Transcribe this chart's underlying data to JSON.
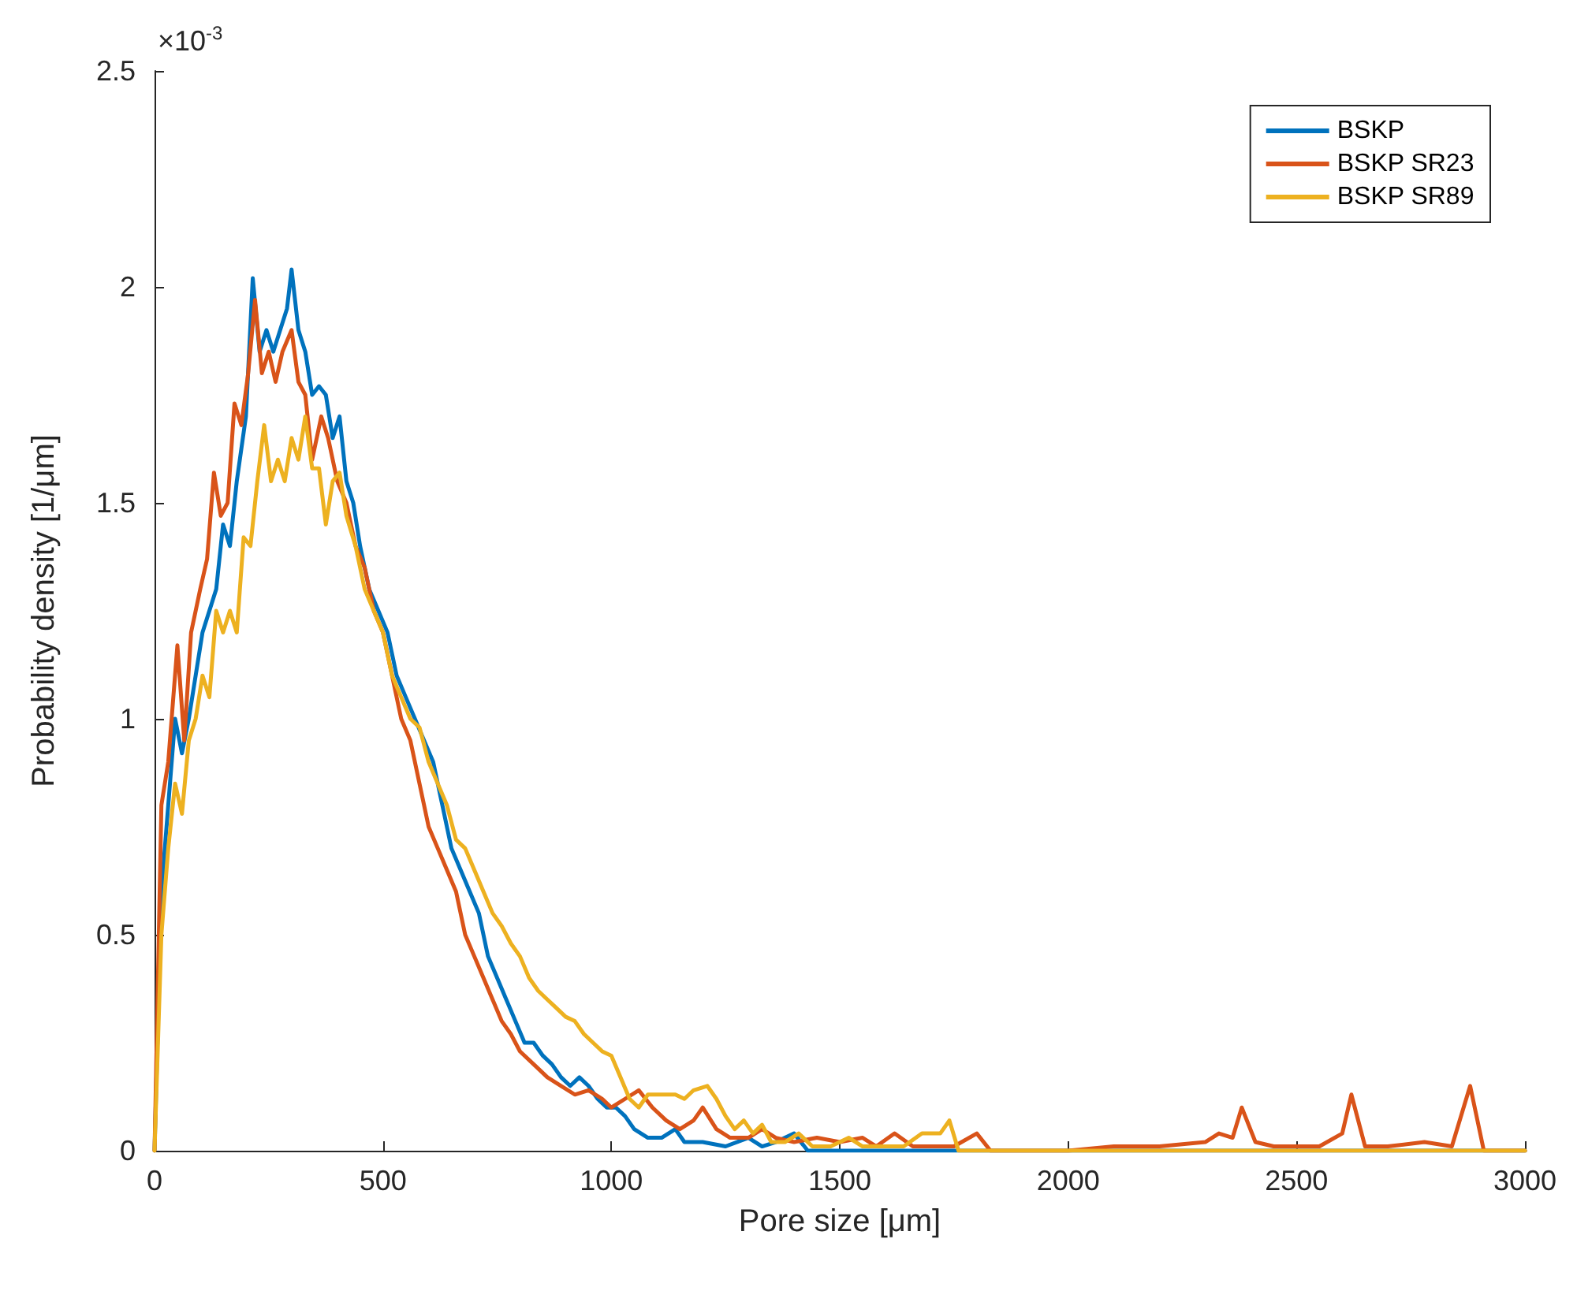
{
  "chart_data": {
    "type": "line",
    "xlabel": "Pore size [μm]",
    "ylabel": "Probability density [1/μm]",
    "annotations": [
      "×10$^{-3}$"
    ],
    "xlim": [
      0,
      3000
    ],
    "ylim": [
      0,
      2.5
    ],
    "xticks": [
      0,
      500,
      1000,
      1500,
      2000,
      2500,
      3000
    ],
    "yticks": [
      0,
      0.5,
      1,
      1.5,
      2,
      2.5
    ],
    "grid": false,
    "legend": "top right",
    "marker": "none",
    "line_style": "solid",
    "series": [
      {
        "name": "BSKP",
        "color": "#0072bd",
        "x": [
          0,
          15,
          30,
          45,
          60,
          75,
          90,
          105,
          120,
          135,
          150,
          165,
          180,
          200,
          215,
          230,
          245,
          260,
          275,
          290,
          300,
          315,
          330,
          345,
          360,
          375,
          390,
          405,
          420,
          435,
          450,
          470,
          490,
          510,
          530,
          550,
          570,
          590,
          610,
          630,
          650,
          670,
          690,
          710,
          730,
          750,
          770,
          790,
          810,
          830,
          850,
          870,
          890,
          910,
          930,
          950,
          970,
          990,
          1010,
          1030,
          1050,
          1080,
          1110,
          1140,
          1160,
          1200,
          1250,
          1300,
          1330,
          1360,
          1400,
          1430,
          1500,
          1600,
          1800,
          3000
        ],
        "values": [
          0,
          0.6,
          0.8,
          1.0,
          0.92,
          1.0,
          1.1,
          1.2,
          1.25,
          1.3,
          1.45,
          1.4,
          1.55,
          1.7,
          2.02,
          1.85,
          1.9,
          1.85,
          1.9,
          1.95,
          2.04,
          1.9,
          1.85,
          1.75,
          1.77,
          1.75,
          1.65,
          1.7,
          1.55,
          1.5,
          1.4,
          1.3,
          1.25,
          1.2,
          1.1,
          1.05,
          1.0,
          0.95,
          0.9,
          0.8,
          0.7,
          0.65,
          0.6,
          0.55,
          0.45,
          0.4,
          0.35,
          0.3,
          0.25,
          0.25,
          0.22,
          0.2,
          0.17,
          0.15,
          0.17,
          0.15,
          0.12,
          0.1,
          0.1,
          0.08,
          0.05,
          0.03,
          0.03,
          0.05,
          0.02,
          0.02,
          0.01,
          0.03,
          0.01,
          0.02,
          0.04,
          0,
          0,
          0,
          0,
          0
        ]
      },
      {
        "name": "BSKP SR23",
        "color": "#d95319",
        "x": [
          0,
          15,
          30,
          50,
          65,
          80,
          100,
          115,
          130,
          145,
          160,
          175,
          190,
          205,
          220,
          235,
          250,
          265,
          280,
          300,
          315,
          330,
          345,
          365,
          380,
          400,
          420,
          440,
          460,
          480,
          500,
          520,
          540,
          560,
          580,
          600,
          620,
          640,
          660,
          680,
          700,
          720,
          740,
          760,
          780,
          800,
          830,
          860,
          890,
          920,
          950,
          980,
          1000,
          1030,
          1060,
          1090,
          1120,
          1150,
          1180,
          1200,
          1230,
          1260,
          1300,
          1330,
          1360,
          1400,
          1450,
          1500,
          1550,
          1580,
          1620,
          1660,
          1700,
          1750,
          1800,
          1830,
          1900,
          2000,
          2100,
          2200,
          2300,
          2330,
          2360,
          2380,
          2410,
          2450,
          2550,
          2600,
          2620,
          2650,
          2700,
          2780,
          2840,
          2880,
          2910,
          3000
        ],
        "values": [
          0,
          0.8,
          0.9,
          1.17,
          0.95,
          1.2,
          1.3,
          1.37,
          1.57,
          1.47,
          1.5,
          1.73,
          1.68,
          1.8,
          1.97,
          1.8,
          1.85,
          1.78,
          1.85,
          1.9,
          1.78,
          1.75,
          1.6,
          1.7,
          1.65,
          1.55,
          1.5,
          1.4,
          1.35,
          1.25,
          1.2,
          1.1,
          1.0,
          0.95,
          0.85,
          0.75,
          0.7,
          0.65,
          0.6,
          0.5,
          0.45,
          0.4,
          0.35,
          0.3,
          0.27,
          0.23,
          0.2,
          0.17,
          0.15,
          0.13,
          0.14,
          0.12,
          0.1,
          0.12,
          0.14,
          0.1,
          0.07,
          0.05,
          0.07,
          0.1,
          0.05,
          0.03,
          0.03,
          0.05,
          0.03,
          0.02,
          0.03,
          0.02,
          0.03,
          0.01,
          0.04,
          0.01,
          0.01,
          0.01,
          0.04,
          0,
          0,
          0,
          0.01,
          0.01,
          0.02,
          0.04,
          0.03,
          0.1,
          0.02,
          0.01,
          0.01,
          0.04,
          0.13,
          0.01,
          0.01,
          0.02,
          0.01,
          0.15,
          0,
          0
        ]
      },
      {
        "name": "BSKP SR89",
        "color": "#edb120",
        "x": [
          0,
          15,
          30,
          45,
          60,
          75,
          90,
          105,
          120,
          135,
          150,
          165,
          180,
          195,
          210,
          225,
          240,
          255,
          270,
          285,
          300,
          315,
          330,
          345,
          360,
          375,
          390,
          405,
          420,
          440,
          460,
          480,
          500,
          520,
          540,
          560,
          580,
          600,
          620,
          640,
          660,
          680,
          700,
          720,
          740,
          760,
          780,
          800,
          820,
          840,
          860,
          880,
          900,
          920,
          940,
          960,
          980,
          1000,
          1020,
          1040,
          1060,
          1080,
          1100,
          1140,
          1160,
          1180,
          1210,
          1230,
          1250,
          1270,
          1290,
          1310,
          1330,
          1350,
          1380,
          1410,
          1440,
          1480,
          1520,
          1550,
          1600,
          1640,
          1680,
          1720,
          1740,
          1760,
          1800,
          3000
        ],
        "values": [
          0,
          0.5,
          0.7,
          0.85,
          0.78,
          0.95,
          1.0,
          1.1,
          1.05,
          1.25,
          1.2,
          1.25,
          1.2,
          1.42,
          1.4,
          1.55,
          1.68,
          1.55,
          1.6,
          1.55,
          1.65,
          1.6,
          1.7,
          1.58,
          1.58,
          1.45,
          1.55,
          1.57,
          1.47,
          1.4,
          1.3,
          1.25,
          1.2,
          1.1,
          1.05,
          1.0,
          0.98,
          0.9,
          0.85,
          0.8,
          0.72,
          0.7,
          0.65,
          0.6,
          0.55,
          0.52,
          0.48,
          0.45,
          0.4,
          0.37,
          0.35,
          0.33,
          0.31,
          0.3,
          0.27,
          0.25,
          0.23,
          0.22,
          0.17,
          0.12,
          0.1,
          0.13,
          0.13,
          0.13,
          0.12,
          0.14,
          0.15,
          0.12,
          0.08,
          0.05,
          0.07,
          0.04,
          0.06,
          0.02,
          0.02,
          0.04,
          0.01,
          0.01,
          0.03,
          0.01,
          0.01,
          0.01,
          0.04,
          0.04,
          0.07,
          0,
          0,
          0
        ]
      }
    ]
  }
}
